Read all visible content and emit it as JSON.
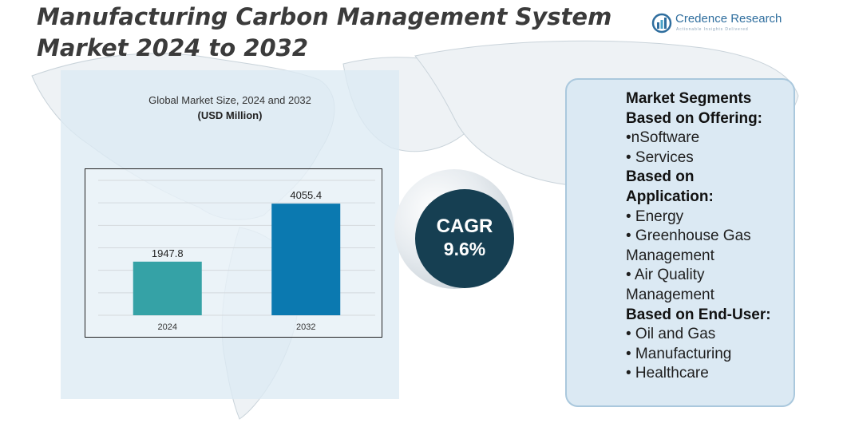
{
  "title_line1": "Manufacturing Carbon Management System",
  "title_line2": "Market 2024 to 2032",
  "brand": {
    "name": "Credence Research",
    "tagline": "Actionable Insights Delivered",
    "color": "#2f6e9e"
  },
  "chart_title": "Global Market Size, 2024 and 2032",
  "chart_unit": "(USD Million)",
  "chart_data": {
    "type": "bar",
    "categories": [
      "2024",
      "2032"
    ],
    "values": [
      1947.8,
      4055.4
    ],
    "value_labels": [
      "1947.8",
      "4055.4"
    ],
    "colors": [
      "#35a2a6",
      "#0b79b0"
    ],
    "title": "Global Market Size, 2024 and 2032",
    "ylabel": "(USD Million)",
    "ylim": [
      0,
      4900
    ],
    "grid": true
  },
  "cagr": {
    "label": "CAGR",
    "value": "9.6%"
  },
  "segments": {
    "title": "Market Segments",
    "offering_head": "Based on Offering:",
    "offering_items": [
      "•nSoftware",
      "• Services"
    ],
    "application_head_1": "Based on",
    "application_head_2": "Application:",
    "application_items": [
      "• Energy",
      "• Greenhouse Gas",
      "Management",
      "• Air Quality",
      "Management"
    ],
    "enduser_head": "Based on End-User:",
    "enduser_items": [
      "• Oil and Gas",
      "• Manufacturing",
      "• Healthcare"
    ]
  }
}
